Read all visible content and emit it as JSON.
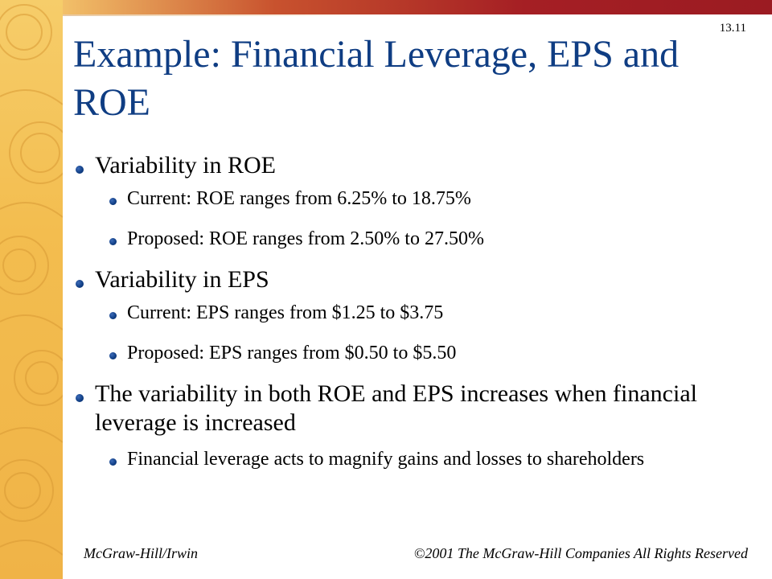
{
  "slide_number": "13.11",
  "title": "Example: Financial Leverage, EPS and ROE",
  "bullets": [
    {
      "text": "Variability in ROE",
      "sub": [
        "Current: ROE ranges from 6.25% to 18.75%",
        "Proposed: ROE ranges from 2.50% to 27.50%"
      ]
    },
    {
      "text": "Variability in EPS",
      "sub": [
        "Current: EPS ranges from $1.25 to $3.75",
        "Proposed: EPS ranges from $0.50 to $5.50"
      ]
    },
    {
      "text": "The variability in both ROE and EPS increases when financial leverage is increased",
      "sub": [
        "Financial leverage acts to magnify gains and losses to shareholders"
      ]
    }
  ],
  "footer": {
    "left": "McGraw-Hill/Irwin",
    "right": "©2001 The McGraw-Hill Companies All Rights Reserved"
  },
  "colors": {
    "title": "#0f3d83",
    "bullet": "#0f3d83",
    "left_bar": "#f3bd4f",
    "top_bar": "#a51f24"
  }
}
